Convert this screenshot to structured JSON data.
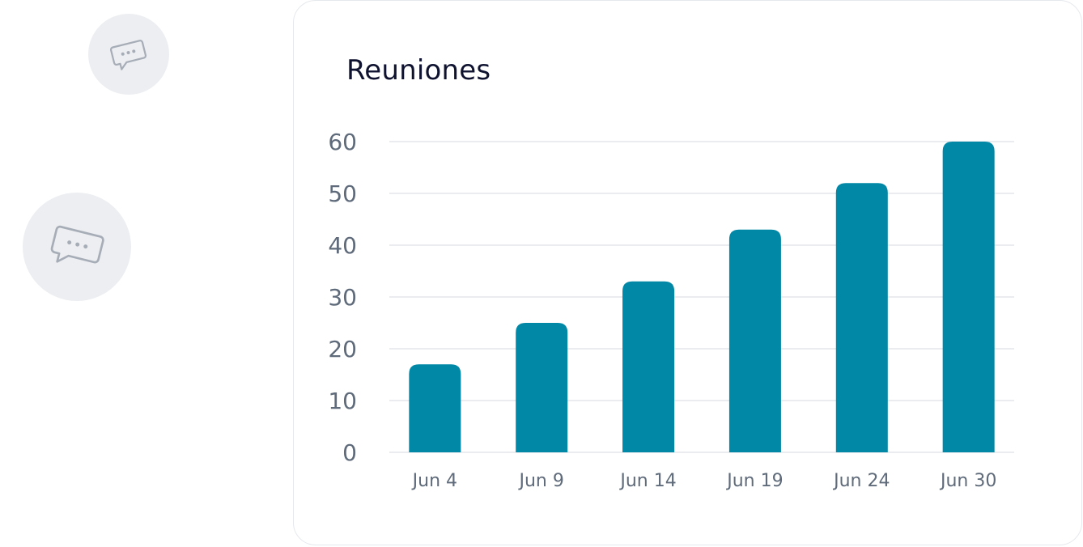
{
  "icons": {
    "top_bubble": "chat-bubble-icon",
    "bottom_bubble": "chat-bubble-icon"
  },
  "card": {
    "title": "Reuniones"
  },
  "colors": {
    "bar": "#0088a6",
    "grid": "#e3e6ea",
    "tick_text": "#5f6b7a",
    "title_text": "#0f1330",
    "bubble_bg": "#eceef1",
    "bubble_icon": "#a7adb7"
  },
  "chart_data": {
    "type": "bar",
    "title": "Reuniones",
    "categories": [
      "Jun 4",
      "Jun 9",
      "Jun 14",
      "Jun 19",
      "Jun 24",
      "Jun 30"
    ],
    "values": [
      17,
      25,
      33,
      43,
      52,
      60
    ],
    "ylim": [
      0,
      60
    ],
    "yticks": [
      0,
      10,
      20,
      30,
      40,
      50,
      60
    ],
    "xlabel": "",
    "ylabel": "",
    "grid": true,
    "legend": "none"
  }
}
